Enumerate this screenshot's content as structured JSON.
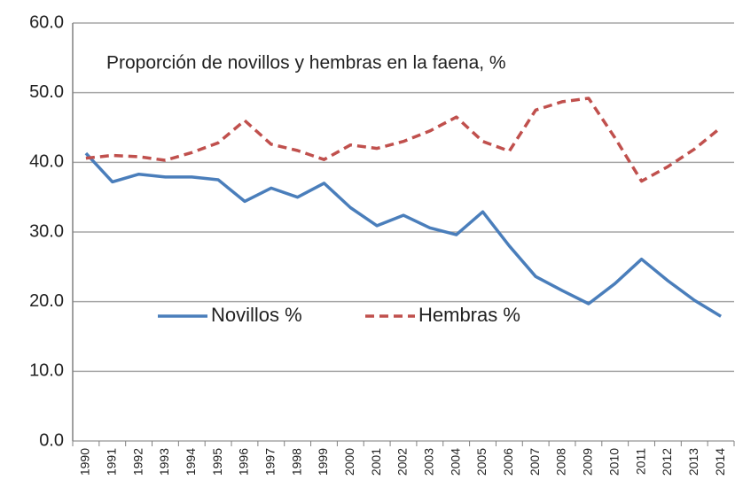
{
  "chart_data": {
    "type": "line",
    "title": "Proporción de novillos y hembras en la faena, %",
    "categories": [
      "1990",
      "1991",
      "1992",
      "1993",
      "1994",
      "1995",
      "1996",
      "1997",
      "1998",
      "1999",
      "2000",
      "2001",
      "2002",
      "2003",
      "2004",
      "2005",
      "2006",
      "2007",
      "2008",
      "2009",
      "2010",
      "2011",
      "2012",
      "2013",
      "2014"
    ],
    "series": [
      {
        "name": "Novillos %",
        "color": "#4a7ebb",
        "style": "solid",
        "values": [
          41.3,
          37.2,
          38.3,
          37.9,
          37.9,
          37.5,
          34.4,
          36.3,
          35.0,
          37.0,
          33.5,
          30.9,
          32.4,
          30.6,
          29.6,
          32.9,
          28.0,
          23.6,
          21.6,
          19.7,
          22.6,
          26.1,
          23.0,
          20.2,
          17.9
        ]
      },
      {
        "name": "Hembras %",
        "color": "#c0504d",
        "style": "dashed",
        "values": [
          40.6,
          41.0,
          40.8,
          40.3,
          41.4,
          42.8,
          46.0,
          42.6,
          41.7,
          40.4,
          42.5,
          42.0,
          43.0,
          44.5,
          46.5,
          43.0,
          41.6,
          47.5,
          48.7,
          49.2,
          43.5,
          37.3,
          39.4,
          41.9,
          45.0
        ]
      }
    ],
    "ylim": [
      0,
      60
    ],
    "yticks": [
      {
        "value": 0,
        "label": "0.0"
      },
      {
        "value": 10,
        "label": "10.0"
      },
      {
        "value": 20,
        "label": "20.0"
      },
      {
        "value": 30,
        "label": "30.0"
      },
      {
        "value": 40,
        "label": "40.0"
      },
      {
        "value": 50,
        "label": "50.0"
      },
      {
        "value": 60,
        "label": "60.0"
      }
    ],
    "grid": true
  }
}
